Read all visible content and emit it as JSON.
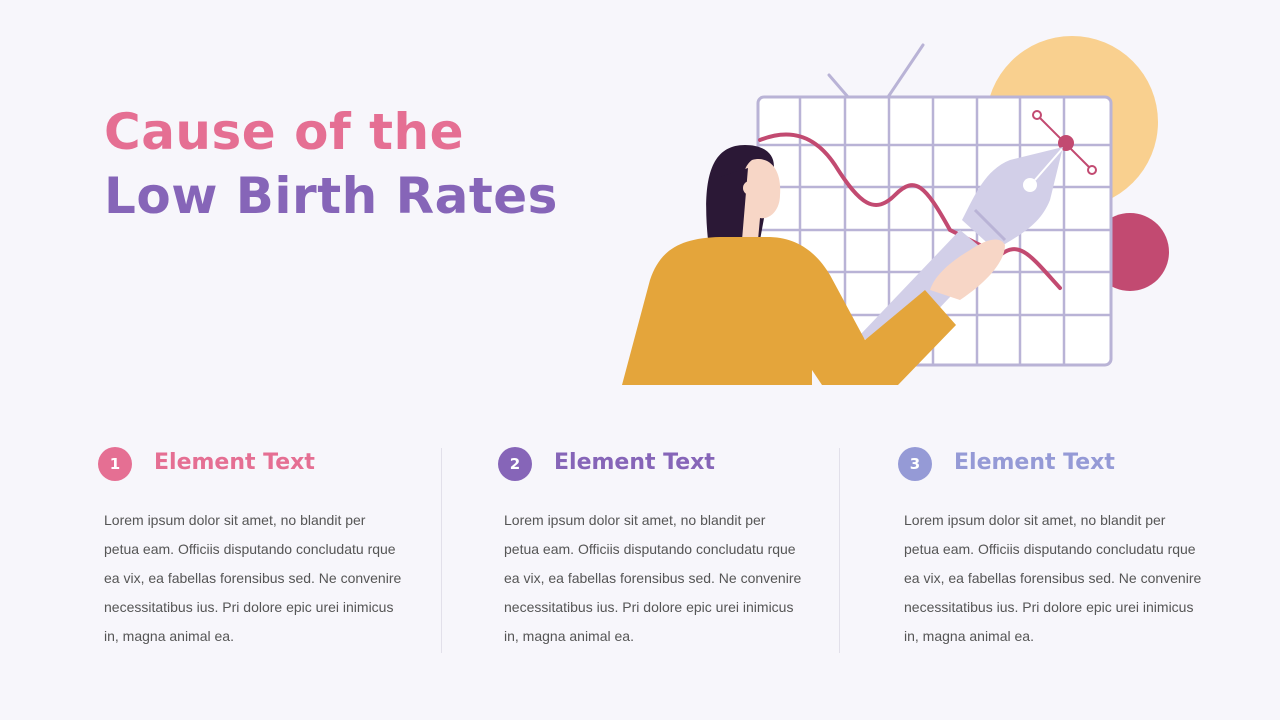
{
  "title": {
    "line1": "Cause of the",
    "line2": "Low Birth Rates"
  },
  "colors": {
    "pink": "#e56f93",
    "purple": "#8665b8",
    "lavender": "#959ad6",
    "orange": "#e4a53b",
    "grid": "#b9b3d6",
    "curve": "#c24a71",
    "sun": "#f9d08f"
  },
  "items": [
    {
      "number": "1",
      "heading": "Element Text",
      "body": "Lorem ipsum dolor sit amet, no blandit per petua eam. Officiis disputando concludatu rque ea vix, ea fabellas forensibus sed. Ne convenire necessitatibus ius. Pri dolore epic urei inimicus in, magna animal ea."
    },
    {
      "number": "2",
      "heading": "Element Text",
      "body": "Lorem ipsum dolor sit amet, no blandit per petua eam. Officiis disputando concludatu rque ea vix, ea fabellas forensibus sed. Ne convenire necessitatibus ius. Pri dolore epic urei inimicus in, magna animal ea."
    },
    {
      "number": "3",
      "heading": "Element Text",
      "body": "Lorem ipsum dolor sit amet, no blandit per petua eam. Officiis disputando concludatu rque ea vix, ea fabellas forensibus sed. Ne convenire necessitatibus ius. Pri dolore epic urei inimicus in, magna animal ea."
    }
  ]
}
